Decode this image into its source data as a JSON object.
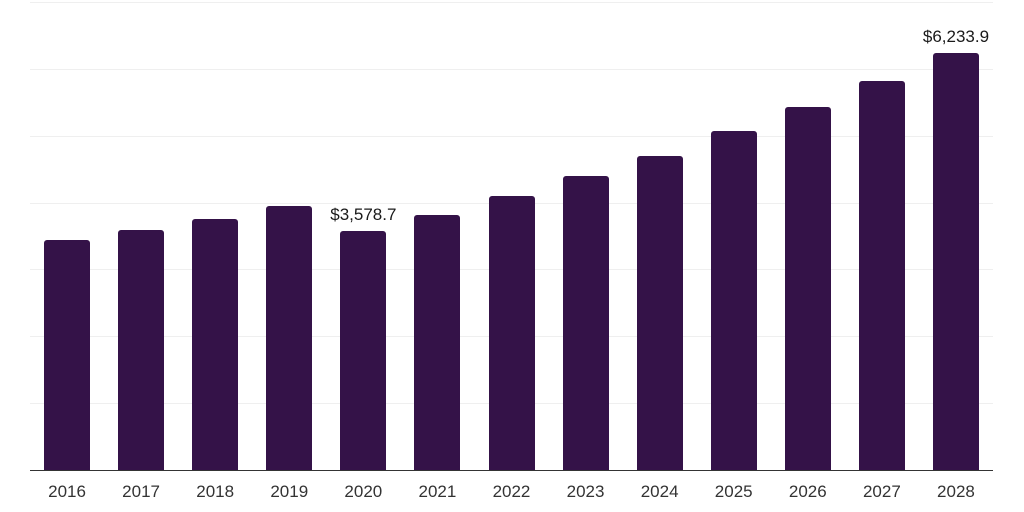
{
  "chart_data": {
    "type": "bar",
    "title": "",
    "xlabel": "",
    "ylabel": "",
    "categories": [
      "2016",
      "2017",
      "2018",
      "2019",
      "2020",
      "2021",
      "2022",
      "2023",
      "2024",
      "2025",
      "2026",
      "2027",
      "2028"
    ],
    "values": [
      3444.0,
      3595.9,
      3759.4,
      3942.4,
      3578.7,
      3816.0,
      4091.1,
      4396.1,
      4701.1,
      5065.6,
      5422.7,
      5824.4,
      6233.9
    ],
    "data_labels": [
      {
        "category": "2020",
        "text": "$3,578.7"
      },
      {
        "category": "2028",
        "text": "$6,233.9"
      }
    ],
    "ylim": [
      0,
      7000
    ],
    "gridline_interval": 1000,
    "grid_on": true,
    "legend": "none",
    "colors": {
      "bar": "#341248",
      "gridline": "#efefef",
      "axis_line": "#343434",
      "tick_label": "#333333",
      "data_label": "#1a1a1a",
      "background": "#ffffff"
    }
  }
}
